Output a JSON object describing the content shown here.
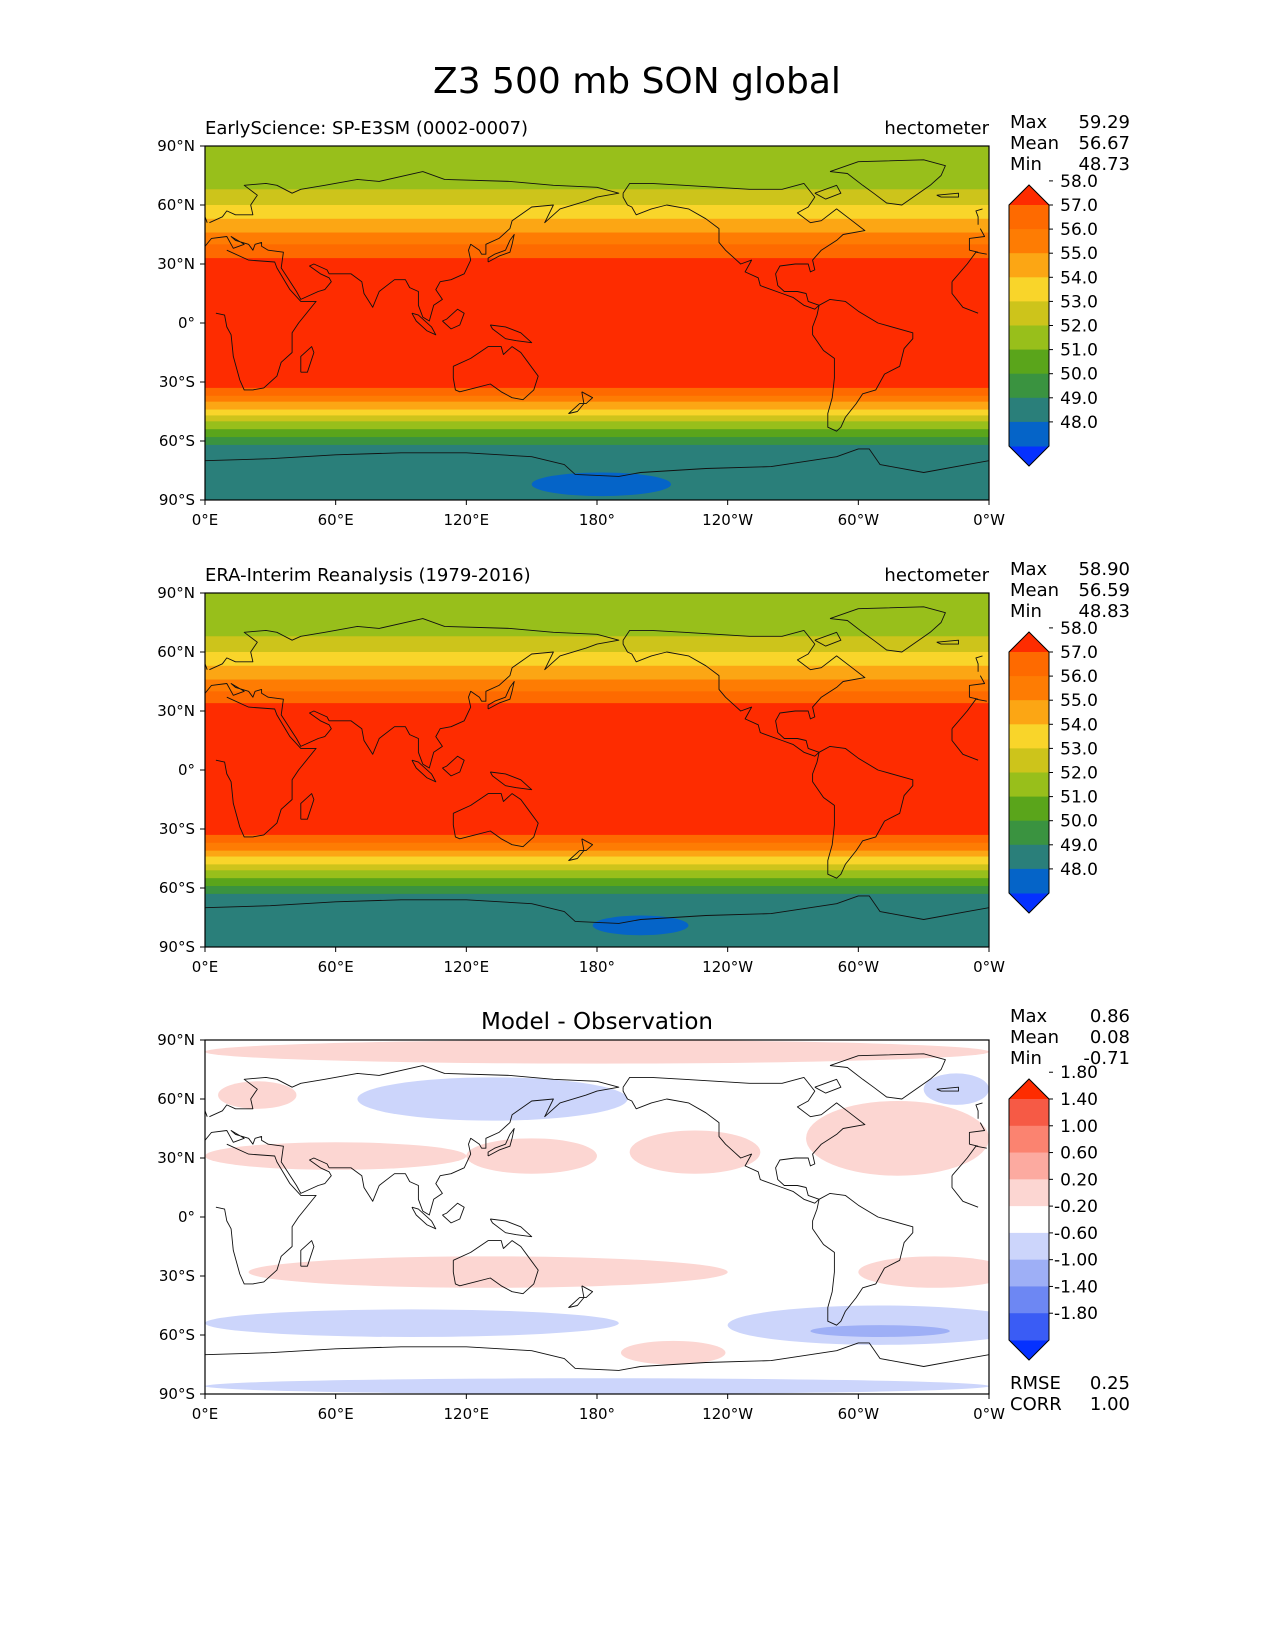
{
  "figure_title": "Z3 500 mb SON global",
  "chart_data": [
    {
      "type": "heatmap",
      "panel": "test",
      "title_left": "EarlyScience: SP-E3SM (0002-0007)",
      "title_right": "hectometer",
      "title_center": "",
      "stats": [
        {
          "label": "Max",
          "value": "59.29"
        },
        {
          "label": "Mean",
          "value": "56.67"
        },
        {
          "label": "Min",
          "value": "48.73"
        }
      ],
      "extra_stats": [],
      "x_ticks": [
        "0°E",
        "60°E",
        "120°E",
        "180°",
        "120°W",
        "60°W",
        "0°W"
      ],
      "y_ticks": [
        "90°N",
        "60°N",
        "30°N",
        "0°",
        "30°S",
        "60°S",
        "90°S"
      ],
      "xlim": [
        0,
        360
      ],
      "ylim": [
        -90,
        90
      ],
      "colorbar": {
        "colors": [
          "#0531ff",
          "#0564c8",
          "#2a7f7a",
          "#3a9340",
          "#5aa51b",
          "#98bf1b",
          "#cdc41b",
          "#f9d52a",
          "#fca614",
          "#fe7c03",
          "#fe6a00",
          "#fe2c00"
        ],
        "labels": [
          "48.0",
          "49.0",
          "50.0",
          "51.0",
          "52.0",
          "53.0",
          "54.0",
          "55.0",
          "56.0",
          "57.0",
          "58.0"
        ]
      },
      "bands": [
        {
          "lat": 90,
          "level": 5
        },
        {
          "lat": 75,
          "level": 5
        },
        {
          "lat": 68,
          "level": 6
        },
        {
          "lat": 60,
          "level": 7
        },
        {
          "lat": 53,
          "level": 8
        },
        {
          "lat": 46,
          "level": 9
        },
        {
          "lat": 40,
          "level": 10
        },
        {
          "lat": 33,
          "level": 11
        },
        {
          "lat": -28,
          "level": 11
        },
        {
          "lat": -33,
          "level": 10
        },
        {
          "lat": -37,
          "level": 9
        },
        {
          "lat": -40,
          "level": 8
        },
        {
          "lat": -44,
          "level": 7
        },
        {
          "lat": -47,
          "level": 6
        },
        {
          "lat": -50,
          "level": 5
        },
        {
          "lat": -54,
          "level": 4
        },
        {
          "lat": -58,
          "level": 3
        },
        {
          "lat": -62,
          "level": 2
        },
        {
          "lat": -90,
          "level": 2
        }
      ],
      "blobs": [
        {
          "lon": 182,
          "lat": -82,
          "rlon": 32,
          "rlat": 6,
          "level": 1
        }
      ]
    },
    {
      "type": "heatmap",
      "panel": "reference",
      "title_left": "ERA-Interim Reanalysis (1979-2016)",
      "title_right": "hectometer",
      "title_center": "",
      "stats": [
        {
          "label": "Max",
          "value": "58.90"
        },
        {
          "label": "Mean",
          "value": "56.59"
        },
        {
          "label": "Min",
          "value": "48.83"
        }
      ],
      "extra_stats": [],
      "x_ticks": [
        "0°E",
        "60°E",
        "120°E",
        "180°",
        "120°W",
        "60°W",
        "0°W"
      ],
      "y_ticks": [
        "90°N",
        "60°N",
        "30°N",
        "0°",
        "30°S",
        "60°S",
        "90°S"
      ],
      "xlim": [
        0,
        360
      ],
      "ylim": [
        -90,
        90
      ],
      "colorbar": {
        "colors": [
          "#0531ff",
          "#0564c8",
          "#2a7f7a",
          "#3a9340",
          "#5aa51b",
          "#98bf1b",
          "#cdc41b",
          "#f9d52a",
          "#fca614",
          "#fe7c03",
          "#fe6a00",
          "#fe2c00"
        ],
        "labels": [
          "48.0",
          "49.0",
          "50.0",
          "51.0",
          "52.0",
          "53.0",
          "54.0",
          "55.0",
          "56.0",
          "57.0",
          "58.0"
        ]
      },
      "bands": [
        {
          "lat": 90,
          "level": 5
        },
        {
          "lat": 75,
          "level": 5
        },
        {
          "lat": 68,
          "level": 6
        },
        {
          "lat": 60,
          "level": 7
        },
        {
          "lat": 53,
          "level": 8
        },
        {
          "lat": 46,
          "level": 9
        },
        {
          "lat": 40,
          "level": 10
        },
        {
          "lat": 34,
          "level": 11
        },
        {
          "lat": -29,
          "level": 11
        },
        {
          "lat": -33,
          "level": 10
        },
        {
          "lat": -37,
          "level": 9
        },
        {
          "lat": -41,
          "level": 8
        },
        {
          "lat": -44,
          "level": 7
        },
        {
          "lat": -48,
          "level": 6
        },
        {
          "lat": -51,
          "level": 5
        },
        {
          "lat": -55,
          "level": 4
        },
        {
          "lat": -59,
          "level": 3
        },
        {
          "lat": -63,
          "level": 2
        },
        {
          "lat": -90,
          "level": 2
        }
      ],
      "blobs": [
        {
          "lon": 200,
          "lat": -79,
          "rlon": 22,
          "rlat": 5,
          "level": 1
        }
      ]
    },
    {
      "type": "heatmap",
      "panel": "difference",
      "title_left": "",
      "title_right": "",
      "title_center": "Model - Observation",
      "stats": [
        {
          "label": "Max",
          "value": "0.86"
        },
        {
          "label": "Mean",
          "value": "0.08"
        },
        {
          "label": "Min",
          "value": "-0.71"
        }
      ],
      "extra_stats": [
        {
          "label": "RMSE",
          "value": "0.25"
        },
        {
          "label": "CORR",
          "value": "1.00"
        }
      ],
      "x_ticks": [
        "0°E",
        "60°E",
        "120°E",
        "180°",
        "120°W",
        "60°W",
        "0°W"
      ],
      "y_ticks": [
        "90°N",
        "60°N",
        "30°N",
        "0°",
        "30°S",
        "60°S",
        "90°S"
      ],
      "xlim": [
        0,
        360
      ],
      "ylim": [
        -90,
        90
      ],
      "colorbar": {
        "colors": [
          "#0531ff",
          "#3a5cf5",
          "#6d87f3",
          "#9eaff6",
          "#ccd5fb",
          "#ffffff",
          "#fcd6d2",
          "#fcaaa0",
          "#fb8370",
          "#f65a45",
          "#fe2c00"
        ],
        "labels": [
          "-1.80",
          "-1.40",
          "-1.00",
          "-0.60",
          "-0.20",
          "0.20",
          "0.60",
          "1.00",
          "1.40",
          "1.80"
        ]
      },
      "bands": [
        {
          "lat": 90,
          "level": 5
        }
      ],
      "blobs": [
        {
          "lon": 180,
          "lat": 84,
          "rlon": 180,
          "rlat": 6,
          "level": 6
        },
        {
          "lon": 24,
          "lat": 62,
          "rlon": 18,
          "rlat": 7,
          "level": 6
        },
        {
          "lon": 132,
          "lat": 60,
          "rlon": 62,
          "rlat": 11,
          "level": 4
        },
        {
          "lon": 345,
          "lat": 65,
          "rlon": 15,
          "rlat": 8,
          "level": 4
        },
        {
          "lon": 60,
          "lat": 31,
          "rlon": 60,
          "rlat": 7,
          "level": 6
        },
        {
          "lon": 150,
          "lat": 31,
          "rlon": 30,
          "rlat": 9,
          "level": 6
        },
        {
          "lon": 225,
          "lat": 33,
          "rlon": 30,
          "rlat": 11,
          "level": 6
        },
        {
          "lon": 318,
          "lat": 40,
          "rlon": 42,
          "rlat": 19,
          "level": 6
        },
        {
          "lon": 130,
          "lat": -28,
          "rlon": 110,
          "rlat": 8,
          "level": 6
        },
        {
          "lon": 335,
          "lat": -28,
          "rlon": 35,
          "rlat": 8,
          "level": 6
        },
        {
          "lon": 95,
          "lat": -54,
          "rlon": 95,
          "rlat": 7,
          "level": 4
        },
        {
          "lon": 310,
          "lat": -55,
          "rlon": 70,
          "rlat": 10,
          "level": 4
        },
        {
          "lon": 310,
          "lat": -58,
          "rlon": 32,
          "rlat": 3,
          "level": 3
        },
        {
          "lon": 215,
          "lat": -69,
          "rlon": 24,
          "rlat": 6,
          "level": 6
        },
        {
          "lon": 180,
          "lat": -86,
          "rlon": 180,
          "rlat": 4,
          "level": 4
        }
      ]
    }
  ]
}
